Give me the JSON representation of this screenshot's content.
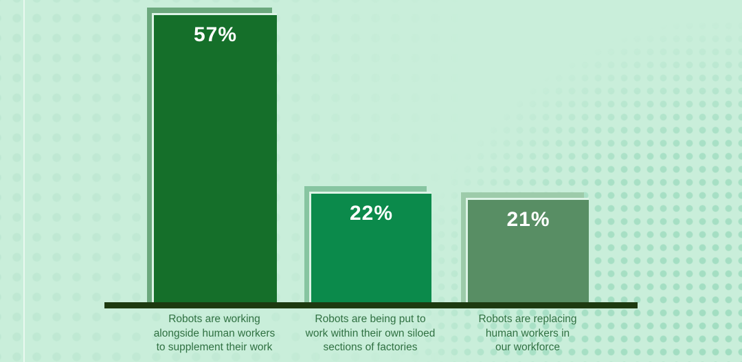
{
  "chart_data": {
    "type": "bar",
    "categories": [
      "Robots are working alongside human workers to supplement their work",
      "Robots are being put to work within their own siloed sections of factories",
      "Robots are replacing human workers in our workforce"
    ],
    "values": [
      57,
      22,
      21
    ],
    "value_labels": [
      "57%",
      "22%",
      "21%"
    ],
    "title": "",
    "xlabel": "",
    "ylabel": "",
    "ylim": [
      0,
      60
    ],
    "grid": false,
    "legend": false,
    "background_color": "#c9eeda",
    "axis_color": "#1d3a10",
    "label_text_color": "#2f7041",
    "value_text_color": "#ffffff",
    "dot_pattern_colors": {
      "left": "#bde7d1",
      "right": "#a0dcc0"
    }
  },
  "bars": [
    {
      "value_label": "57%",
      "label_line1": "Robots are working",
      "label_line2": "alongside human workers",
      "label_line3": "to supplement their work",
      "fill_color": "#156f2a",
      "shadow_color": "#6ba87d"
    },
    {
      "value_label": "22%",
      "label_line1": "Robots are being put to",
      "label_line2": "work within their own siloed",
      "label_line3": "sections of factories",
      "fill_color": "#0b8a4b",
      "shadow_color": "#87c5a1"
    },
    {
      "value_label": "21%",
      "label_line1": "Robots are replacing",
      "label_line2": "human workers in",
      "label_line3": "our workforce",
      "fill_color": "#588e64",
      "shadow_color": "#9dcbaa"
    }
  ]
}
